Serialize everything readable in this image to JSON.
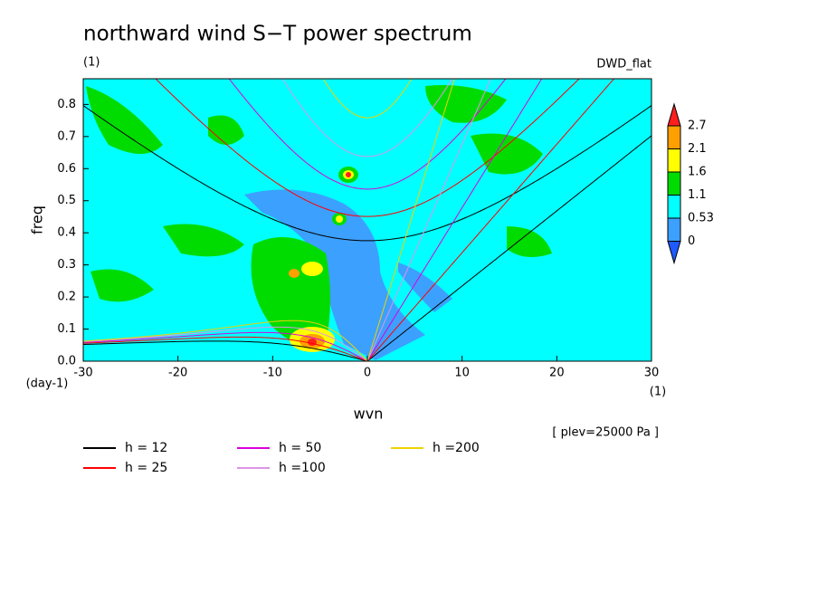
{
  "chart_data": {
    "type": "spectrum",
    "title": "northward wind S−T power spectrum",
    "subtitle": "(1)",
    "source": "DWD_flat",
    "xlabel": "wvn",
    "ylabel": "freq",
    "x_unit": "(1)",
    "y_unit": "(day-1)",
    "annotation": "[ plev=25000 Pa ]",
    "xlim": [
      -30,
      30
    ],
    "xticks": [
      -30,
      -20,
      -10,
      0,
      10,
      20,
      30
    ],
    "ylim": [
      0,
      0.88
    ],
    "yticks": [
      {
        "value": 0,
        "label": "0.0"
      },
      0.1,
      0.2,
      0.3,
      0.4,
      0.5,
      0.6,
      0.7,
      0.8
    ],
    "colorbar": {
      "levels": [
        0,
        0.53,
        1.1,
        1.6,
        2.1,
        2.7
      ],
      "colors": [
        "#1e5aff",
        "#3ca0ff",
        "#00ffff",
        "#00dc00",
        "#ffff00",
        "#ffa000",
        "#ff1e1e"
      ]
    },
    "series": [
      {
        "name": "h = 12",
        "h": 12,
        "color": "#000000"
      },
      {
        "name": "h = 25",
        "h": 25,
        "color": "#ff0000"
      },
      {
        "name": "h = 50",
        "h": 50,
        "color": "#dc00dc"
      },
      {
        "name": "h =100",
        "h": 100,
        "color": "#dc96e6"
      },
      {
        "name": "h =200",
        "h": 200,
        "color": "#f0d200"
      }
    ]
  }
}
